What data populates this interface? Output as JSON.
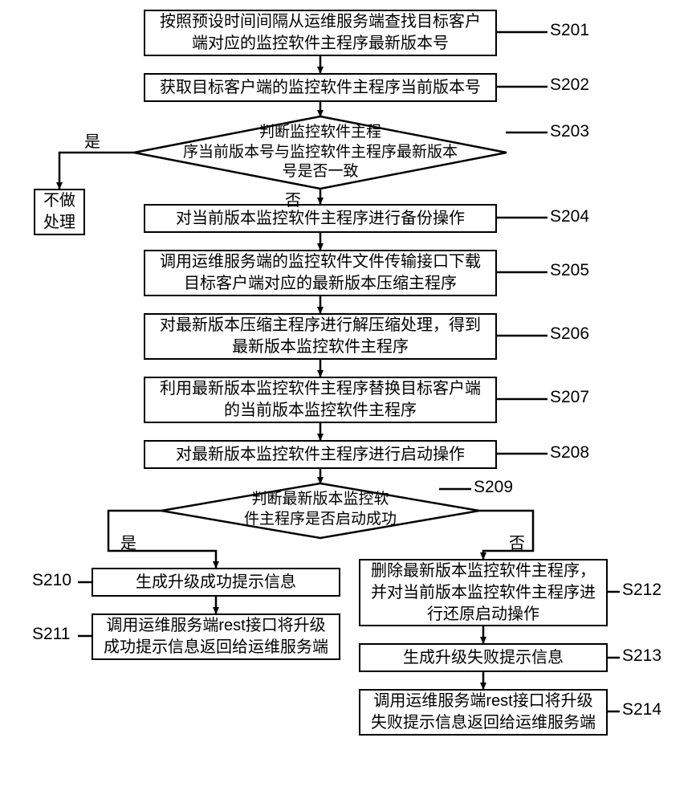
{
  "diagram": {
    "type": "flowchart",
    "background_color": "#ffffff",
    "stroke_color": "#000000",
    "stroke_width": 2.5,
    "font_family": "SimSun",
    "node_fontsize": 20,
    "label_fontsize": 21,
    "edge_label_fontsize": 20,
    "arrow_size": 8,
    "nodes": {
      "s201": {
        "text": "按照预设时间间隔从运维服务端查找目标客户\n端对应的监控软件主程序最新版本号",
        "label": "S201"
      },
      "s202": {
        "text": "获取目标客户端的监控软件主程序当前版本号",
        "label": "S202"
      },
      "s203": {
        "text": "判断监控软件主程\n序当前版本号与监控软件主程序最新版本\n号是否一致",
        "label": "S203",
        "shape": "diamond"
      },
      "noop": {
        "text": "不做\n处理"
      },
      "s204": {
        "text": "对当前版本监控软件主程序进行备份操作",
        "label": "S204"
      },
      "s205": {
        "text": "调用运维服务端的监控软件文件传输接口下载\n目标客户端对应的最新版本压缩主程序",
        "label": "S205"
      },
      "s206": {
        "text": "对最新版本压缩主程序进行解压缩处理，得到\n最新版本监控软件主程序",
        "label": "S206"
      },
      "s207": {
        "text": "利用最新版本监控软件主程序替换目标客户端\n的当前版本监控软件主程序",
        "label": "S207"
      },
      "s208": {
        "text": "对最新版本监控软件主程序进行启动操作",
        "label": "S208"
      },
      "s209": {
        "text": "判断最新版本监控软\n件主程序是否启动成功",
        "label": "S209",
        "shape": "diamond"
      },
      "s210": {
        "text": "生成升级成功提示信息",
        "label": "S210"
      },
      "s211": {
        "text": "调用运维服务端rest接口将升级\n成功提示信息返回给运维服务端",
        "label": "S211"
      },
      "s212": {
        "text": "删除最新版本监控软件主程序，\n并对当前版本监控软件主程序进\n行还原启动操作",
        "label": "S212"
      },
      "s213": {
        "text": "生成升级失败提示信息",
        "label": "S213"
      },
      "s214": {
        "text": "调用运维服务端rest接口将升级\n失败提示信息返回给运维服务端",
        "label": "S214"
      }
    },
    "edge_labels": {
      "yes": "是",
      "no": "否"
    }
  }
}
